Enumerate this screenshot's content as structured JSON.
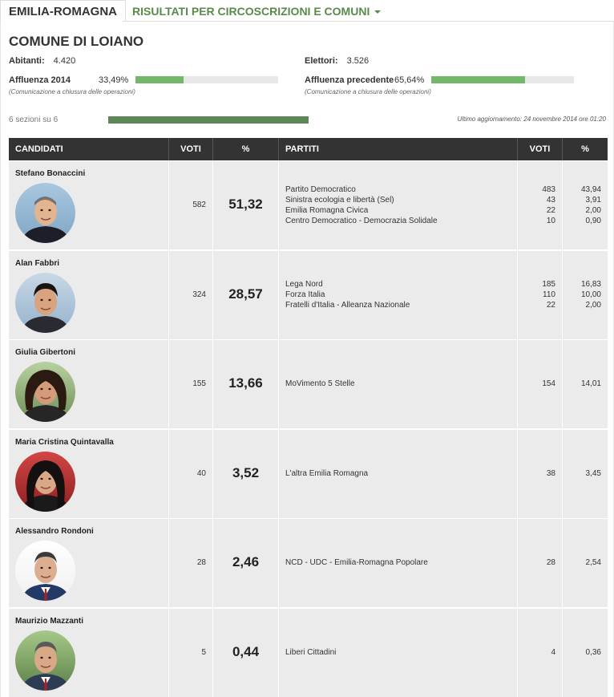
{
  "nav": {
    "region": "EMILIA-ROMAGNA",
    "results_menu": "RISULTATI PER CIRCOSCRIZIONI E COMUNI"
  },
  "comune": {
    "title": "COMUNE DI LOIANO",
    "abitanti_label": "Abitanti:",
    "abitanti": "4.420",
    "elettori_label": "Elettori:",
    "elettori": "3.526",
    "affluenza_label": "Affluenza 2014",
    "affluenza": "33,49%",
    "affluenza_fraction": 0.3349,
    "affluenza_prec_label": "Affluenza precedente",
    "affluenza_prec": "65,64%",
    "affluenza_prec_fraction": 0.6564,
    "note": "(Comunicazione a chiusura delle operazioni)",
    "sezioni": "6 sezioni su 6",
    "sezioni_fraction": 1.0,
    "aggiornamento": "Ultimo aggiornamento: 24 novembre 2014 ore 01:20"
  },
  "table": {
    "headers": {
      "candidati": "CANDIDATI",
      "voti": "VOTI",
      "pct": "%",
      "partiti": "PARTITI",
      "voti2": "VOTI",
      "pct2": "%"
    },
    "rows": [
      {
        "name": "Stefano Bonaccini",
        "votes": "582",
        "pct": "51,32",
        "parties": [
          "Partito Democratico",
          "Sinistra ecologia e libertà (Sel)",
          "Emilia Romagna Civica",
          "Centro Democratico - Democrazia Solidale"
        ],
        "party_votes": [
          "483",
          "43",
          "22",
          "10"
        ],
        "party_pct": [
          "43,94",
          "3,91",
          "2,00",
          "0,90"
        ]
      },
      {
        "name": "Alan Fabbri",
        "votes": "324",
        "pct": "28,57",
        "parties": [
          "Lega Nord",
          "Forza Italia",
          "Fratelli d'Italia - Alleanza Nazionale"
        ],
        "party_votes": [
          "185",
          "110",
          "22"
        ],
        "party_pct": [
          "16,83",
          "10,00",
          "2,00"
        ]
      },
      {
        "name": "Giulia Gibertoni",
        "votes": "155",
        "pct": "13,66",
        "parties": [
          "MoVimento 5 Stelle"
        ],
        "party_votes": [
          "154"
        ],
        "party_pct": [
          "14,01"
        ]
      },
      {
        "name": "Maria Cristina Quintavalla",
        "votes": "40",
        "pct": "3,52",
        "parties": [
          "L'altra Emilia Romagna"
        ],
        "party_votes": [
          "38"
        ],
        "party_pct": [
          "3,45"
        ]
      },
      {
        "name": "Alessandro Rondoni",
        "votes": "28",
        "pct": "2,46",
        "parties": [
          "NCD - UDC - Emilia-Romagna Popolare"
        ],
        "party_votes": [
          "28"
        ],
        "party_pct": [
          "2,54"
        ]
      },
      {
        "name": "Maurizio Mazzanti",
        "votes": "5",
        "pct": "0,44",
        "parties": [
          "Liberi Cittadini"
        ],
        "party_votes": [
          "4"
        ],
        "party_pct": [
          "0,36"
        ]
      }
    ]
  },
  "colors": {
    "bar_fill": "#73b86a",
    "sections_bar": "#5b8855",
    "header_bg": "#333333",
    "row_bg": "#ebebeb",
    "nav_accent": "#5a8a4a"
  }
}
